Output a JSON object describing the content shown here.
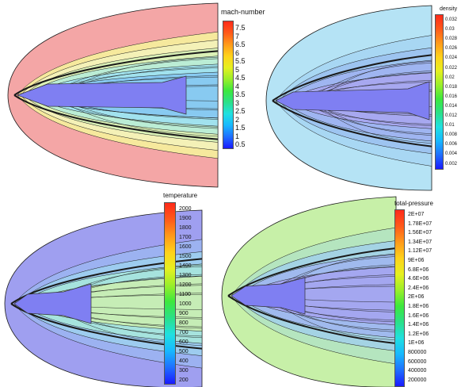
{
  "panels": [
    {
      "id": "mach",
      "title": "mach-number",
      "field_color": "#f4a6a6",
      "band_colors": [
        "#f5ec9c",
        "#f3f1b8",
        "#d9f0b6",
        "#b9ecd6",
        "#9fe2ef",
        "#87c8f0"
      ],
      "ticks": [
        "7.5",
        "7",
        "6.5",
        "6",
        "5.5",
        "5",
        "4.5",
        "4",
        "3.5",
        "3",
        "2.5",
        "2",
        "1.5",
        "1",
        "0.5"
      ]
    },
    {
      "id": "density",
      "title": "density",
      "field_color": "#b5e3f5",
      "band_colors": [
        "#a8d6f2",
        "#9cc3ef",
        "#9fb4f0",
        "#a8a8ef"
      ],
      "ticks": [
        "0.032",
        "0.03",
        "0.028",
        "0.026",
        "0.024",
        "0.022",
        "0.02",
        "0.018",
        "0.016",
        "0.014",
        "0.012",
        "0.01",
        "0.008",
        "0.006",
        "0.004",
        "0.002"
      ]
    },
    {
      "id": "temperature",
      "title": "temperature",
      "field_color": "#9f9ff0",
      "band_colors": [
        "#9cb3f0",
        "#9dcdee",
        "#a7e4dc",
        "#c7edb3"
      ],
      "ticks": [
        "2000",
        "1900",
        "1800",
        "1700",
        "1600",
        "1500",
        "1400",
        "1300",
        "1200",
        "1100",
        "1000",
        "900",
        "800",
        "700",
        "600",
        "500",
        "400",
        "300",
        "200"
      ]
    },
    {
      "id": "total-pressure",
      "title": "total-pressure",
      "field_color": "#c7f0a8",
      "band_colors": [
        "#b4e4c0",
        "#a3d2e6",
        "#a0b8ee",
        "#a4a5ef"
      ],
      "ticks": [
        "2E+07",
        "1.78E+07",
        "1.56E+07",
        "1.34E+07",
        "1.12E+07",
        "9E+06",
        "6.8E+06",
        "4.6E+06",
        "2.4E+06",
        "2E+06",
        "1.8E+06",
        "1.6E+06",
        "1.4E+06",
        "1.2E+06",
        "1E+06",
        "800000",
        "600000",
        "400000",
        "200000"
      ]
    }
  ],
  "colormap": [
    "#1a1aff",
    "#1f6fff",
    "#17b8ff",
    "#20e0e0",
    "#2ae088",
    "#3de83d",
    "#9aef2a",
    "#e6f020",
    "#ffd21a",
    "#ff9a1a",
    "#ff5a1a",
    "#ff2a1a"
  ],
  "body_color": "#7f7ff2",
  "contour_color": "#1a1a1a"
}
